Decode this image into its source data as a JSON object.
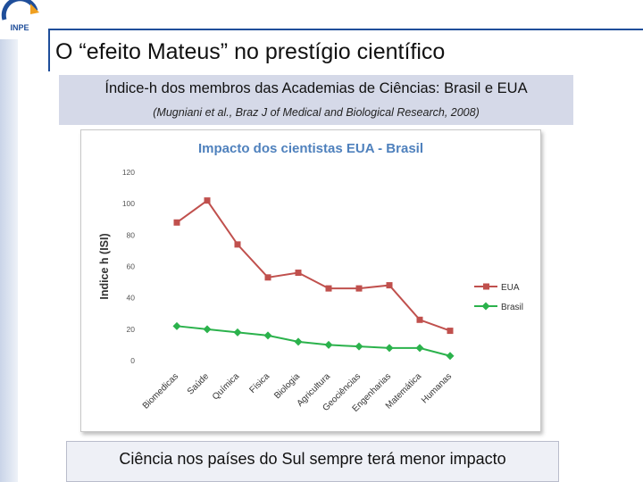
{
  "slide": {
    "title": "O “efeito Mateus” no prestígio científico",
    "subtitle": "Índice-h dos membros das Academias de Ciências: Brasil e EUA",
    "citation": "(Mugniani et al., Braz J of Medical and Biological Research, 2008)",
    "footer": "Ciência nos países do Sul sempre terá menor impacto",
    "logo_text": "INPE"
  },
  "colors": {
    "eua": "#c0504d",
    "brasil": "#2bb24c",
    "title": "#4f81bd",
    "rule": "#1f4e9a"
  },
  "chart_data": {
    "type": "line",
    "title": "Impacto dos cientistas EUA - Brasil",
    "xlabel": "",
    "ylabel": "Indice h (ISI)",
    "categories": [
      "Biomedicas",
      "Saúde",
      "Química",
      "Física",
      "Biologia",
      "Agricultura",
      "Geociências",
      "Engenharias",
      "Matemática",
      "Humanas"
    ],
    "series": [
      {
        "name": "EUA",
        "values": [
          88,
          102,
          74,
          53,
          56,
          46,
          46,
          48,
          26,
          19
        ]
      },
      {
        "name": "Brasil",
        "values": [
          22,
          20,
          18,
          16,
          12,
          10,
          9,
          8,
          8,
          3
        ]
      }
    ],
    "ylim": [
      0,
      120
    ],
    "yticks": [
      "0",
      "20",
      "40",
      "60",
      "80",
      "100",
      "120"
    ],
    "grid": false,
    "legend": "right"
  }
}
